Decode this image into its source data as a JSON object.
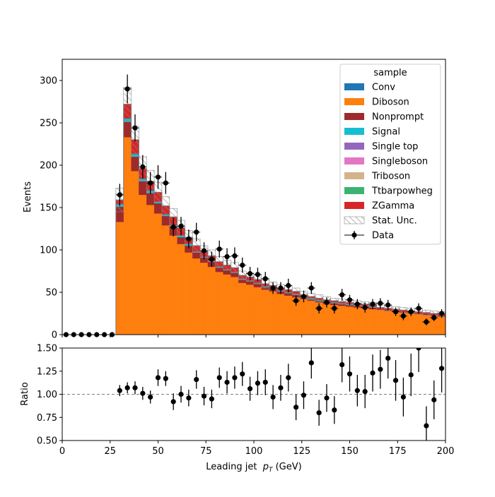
{
  "chart_data": [
    {
      "type": "bar",
      "stacked": true,
      "histogram": true,
      "ylabel": "Events",
      "ylim": [
        0,
        325
      ],
      "yticks": [
        "0",
        "50",
        "100",
        "150",
        "200",
        "250",
        "300"
      ],
      "xlim": [
        0,
        200
      ],
      "bin_width": 4,
      "bin_edges_start": 0,
      "legend": {
        "title": "sample",
        "placement": "top-right",
        "entries": [
          {
            "name": "Conv",
            "color": "#1f77b4",
            "style": "patch"
          },
          {
            "name": "Diboson",
            "color": "#ff7f0e",
            "style": "patch"
          },
          {
            "name": "Nonprompt",
            "color": "#9e2a2b",
            "style": "patch"
          },
          {
            "name": "Signal",
            "color": "#17becf",
            "style": "patch"
          },
          {
            "name": "Single top",
            "color": "#9467bd",
            "style": "patch"
          },
          {
            "name": "Singleboson",
            "color": "#e377c2",
            "style": "patch"
          },
          {
            "name": "Triboson",
            "color": "#d2b48c",
            "style": "patch"
          },
          {
            "name": "Ttbarpowheg",
            "color": "#3cb371",
            "style": "patch"
          },
          {
            "name": "ZGamma",
            "color": "#d62728",
            "style": "patch"
          },
          {
            "name": "Stat. Unc.",
            "color": "#888888",
            "style": "hatch"
          },
          {
            "name": "Data",
            "color": "#000000",
            "style": "errorbar"
          }
        ]
      },
      "series": [
        {
          "name": "Diboson",
          "color": "#ff7f0e",
          "values": [
            0,
            0,
            0,
            0,
            0,
            0,
            0,
            133,
            233,
            193,
            165,
            153,
            143,
            129,
            117,
            107,
            97,
            90,
            85,
            80,
            74,
            71,
            68,
            61,
            59,
            56,
            53,
            51,
            48,
            46,
            44,
            42,
            40,
            38,
            36,
            35,
            34,
            33,
            32,
            31,
            30,
            29,
            28,
            27,
            26,
            25,
            24,
            23,
            22,
            21
          ]
        },
        {
          "name": "Nonprompt",
          "color": "#9e2a2b",
          "values": [
            0,
            0,
            0,
            0,
            0,
            0,
            0,
            18,
            18,
            17,
            16,
            14,
            12,
            11,
            10,
            8,
            8,
            7,
            6,
            6,
            5,
            5,
            5,
            4,
            4,
            4,
            3,
            3,
            3,
            3,
            3,
            2,
            2,
            2,
            2,
            2,
            2,
            2,
            2,
            2,
            2,
            1,
            1,
            1,
            1,
            1,
            1,
            1,
            1,
            1
          ]
        },
        {
          "name": "Signal",
          "color": "#17becf",
          "values": [
            0,
            0,
            0,
            0,
            0,
            0,
            0,
            3,
            4,
            3,
            3,
            3,
            2,
            2,
            2,
            2,
            2,
            1,
            1,
            1,
            1,
            1,
            1,
            1,
            1,
            1,
            1,
            1,
            1,
            1,
            1,
            1,
            1,
            1,
            1,
            1,
            1,
            1,
            1,
            1,
            1,
            0,
            0,
            0,
            0,
            0,
            0,
            0,
            0,
            0
          ]
        },
        {
          "name": "ZGamma",
          "color": "#d62728",
          "values": [
            0,
            0,
            0,
            0,
            0,
            0,
            0,
            5,
            17,
            17,
            12,
            11,
            11,
            10,
            10,
            9,
            8,
            7,
            6,
            6,
            6,
            5,
            5,
            4,
            4,
            4,
            3,
            3,
            3,
            3,
            3,
            2,
            2,
            2,
            2,
            2,
            2,
            2,
            2,
            2,
            2,
            2,
            2,
            2,
            2,
            2,
            2,
            2,
            2,
            2
          ]
        }
      ],
      "uncertainty_band": {
        "name": "Stat. Unc.",
        "up": [
          0,
          0,
          0,
          0,
          0,
          0,
          0,
          14,
          20,
          16,
          14,
          13,
          12,
          11,
          10,
          9,
          8,
          8,
          7,
          7,
          6,
          6,
          6,
          5,
          5,
          5,
          5,
          4,
          4,
          4,
          4,
          4,
          4,
          4,
          4,
          3,
          3,
          3,
          3,
          3,
          3,
          3,
          3,
          3,
          3,
          3,
          3,
          3,
          3,
          3
        ]
      },
      "data": {
        "name": "Data",
        "x": [
          2,
          6,
          10,
          14,
          18,
          22,
          26,
          30,
          34,
          38,
          42,
          46,
          50,
          54,
          58,
          62,
          66,
          70,
          74,
          78,
          82,
          86,
          90,
          94,
          98,
          102,
          106,
          110,
          114,
          118,
          122,
          126,
          130,
          134,
          138,
          142,
          146,
          150,
          154,
          158,
          162,
          166,
          170,
          174,
          178,
          182,
          186,
          190,
          194,
          198
        ],
        "y": [
          0,
          0,
          0,
          0,
          0,
          0,
          0,
          165,
          290,
          244,
          198,
          179,
          186,
          179,
          127,
          128,
          113,
          121,
          99,
          89,
          101,
          92,
          93,
          82,
          72,
          71,
          66,
          55,
          55,
          58,
          40,
          45,
          55,
          31,
          38,
          31,
          47,
          41,
          36,
          32,
          36,
          37,
          35,
          27,
          22,
          27,
          31,
          15,
          20,
          25
        ],
        "err": [
          0,
          0,
          0,
          0,
          0,
          0,
          0,
          13,
          17,
          16,
          14,
          13,
          14,
          13,
          11,
          11,
          11,
          11,
          10,
          9,
          10,
          10,
          10,
          9,
          8,
          8,
          8,
          7,
          7,
          8,
          6,
          7,
          7,
          6,
          6,
          6,
          7,
          6,
          6,
          6,
          6,
          6,
          6,
          5,
          5,
          5,
          6,
          4,
          4,
          5
        ]
      }
    },
    {
      "type": "scatter",
      "ylabel": "Ratio",
      "xlabel": "Leading jet  p_T (GeV)",
      "xlabel_main": "Leading jet  ",
      "xlabel_p": "p",
      "xlabel_sub": "T",
      "xlabel_unit": " (GeV)",
      "xlim": [
        0,
        200
      ],
      "ylim": [
        0.5,
        1.5
      ],
      "xticks": [
        "0",
        "25",
        "50",
        "75",
        "100",
        "125",
        "150",
        "175",
        "200"
      ],
      "yticks": [
        "0.50",
        "0.75",
        "1.00",
        "1.25",
        "1.50"
      ],
      "reference_line": 1.0,
      "points": {
        "x": [
          30,
          34,
          38,
          42,
          46,
          50,
          54,
          58,
          62,
          66,
          70,
          74,
          78,
          82,
          86,
          90,
          94,
          98,
          102,
          106,
          110,
          114,
          118,
          122,
          126,
          130,
          134,
          138,
          142,
          146,
          150,
          154,
          158,
          162,
          166,
          170,
          174,
          178,
          182,
          186,
          190,
          194,
          198
        ],
        "y": [
          1.04,
          1.07,
          1.07,
          1.01,
          0.97,
          1.18,
          1.17,
          0.92,
          1.0,
          0.96,
          1.16,
          0.98,
          0.95,
          1.18,
          1.13,
          1.18,
          1.22,
          1.06,
          1.12,
          1.13,
          0.97,
          1.07,
          1.18,
          0.86,
          0.99,
          1.34,
          0.8,
          0.96,
          0.83,
          1.32,
          1.22,
          1.04,
          1.03,
          1.23,
          1.27,
          1.39,
          1.15,
          0.97,
          1.21,
          1.5,
          0.66,
          0.94,
          1.28
        ],
        "err": [
          0.06,
          0.06,
          0.07,
          0.07,
          0.07,
          0.09,
          0.08,
          0.09,
          0.09,
          0.09,
          0.1,
          0.1,
          0.1,
          0.11,
          0.12,
          0.12,
          0.13,
          0.13,
          0.13,
          0.14,
          0.13,
          0.14,
          0.15,
          0.14,
          0.15,
          0.17,
          0.14,
          0.15,
          0.15,
          0.19,
          0.19,
          0.17,
          0.18,
          0.2,
          0.21,
          0.22,
          0.22,
          0.21,
          0.23,
          0.26,
          0.21,
          0.21,
          0.26
        ]
      }
    }
  ]
}
